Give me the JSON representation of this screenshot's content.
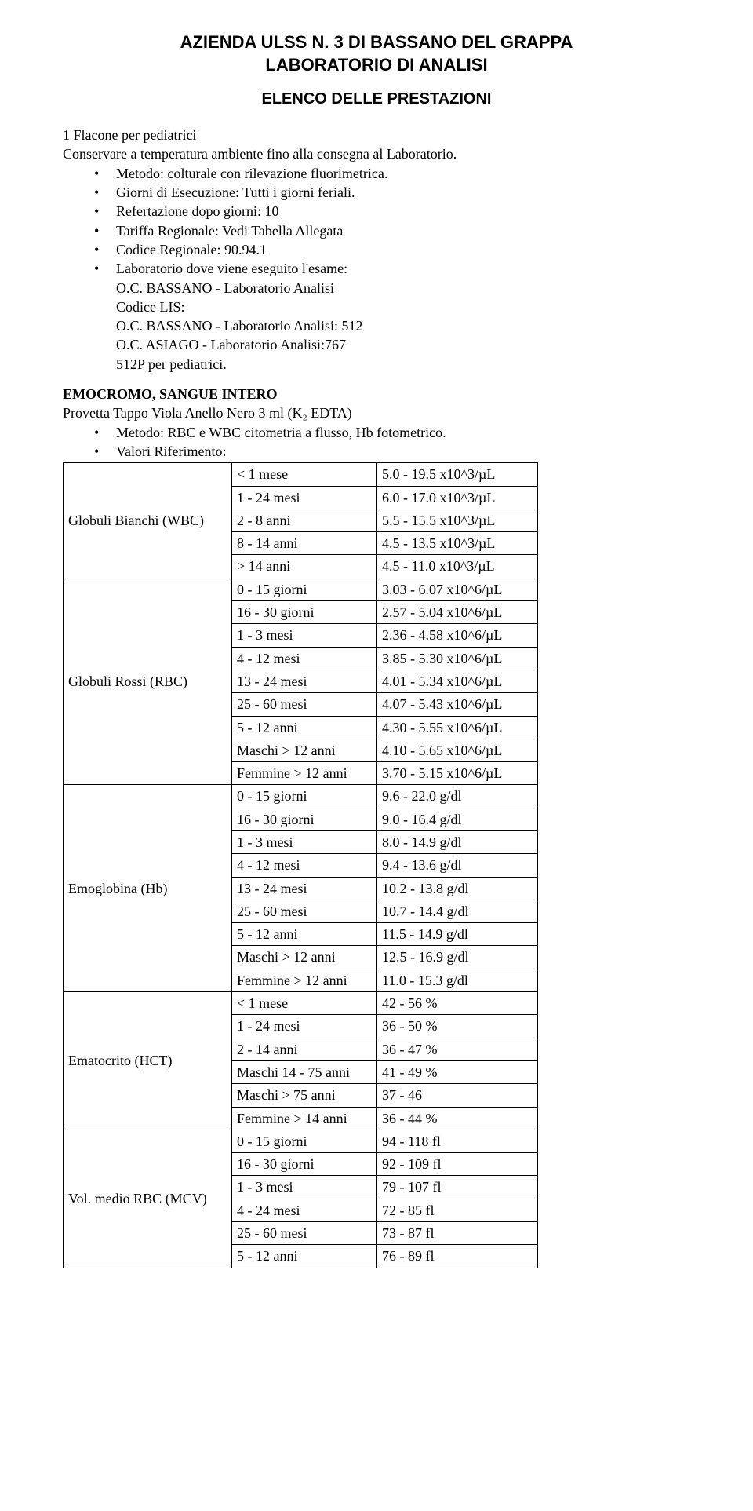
{
  "header": {
    "line1": "AZIENDA ULSS N. 3 DI BASSANO DEL GRAPPA",
    "line2": "LABORATORIO DI ANALISI",
    "subtitle": "ELENCO DELLE PRESTAZIONI"
  },
  "intro": {
    "line1": "1 Flacone per pediatrici",
    "line2": "Conservare a temperatura ambiente fino alla consegna al Laboratorio."
  },
  "bullets1": [
    "Metodo: colturale con rilevazione fluorimetrica.",
    "Giorni di Esecuzione: Tutti i giorni feriali.",
    "Refertazione dopo giorni: 10",
    "Tariffa Regionale: Vedi Tabella Allegata",
    "Codice Regionale: 90.94.1",
    "Laboratorio dove viene eseguito l'esame:",
    "O.C. BASSANO - Laboratorio Analisi",
    "Codice LIS:",
    "O.C. BASSANO - Laboratorio Analisi: 512",
    "O.C. ASIAGO - Laboratorio Analisi:767",
    "512P  per pediatrici."
  ],
  "section2": {
    "title": "EMOCROMO, SANGUE INTERO",
    "subtitle": "Provetta Tappo Viola Anello Nero 3 ml (K₂ EDTA)"
  },
  "bullets2": [
    "Metodo: RBC e WBC citometria a flusso, Hb fotometrico.",
    "Valori Riferimento:"
  ],
  "table": {
    "groups": [
      {
        "label": "Globuli Bianchi  (WBC)",
        "rows": [
          [
            "< 1 mese",
            "5.0 - 19.5  x10^3/µL"
          ],
          [
            "1 - 24 mesi",
            "6.0 - 17.0 x10^3/µL"
          ],
          [
            "2 - 8 anni",
            "5.5 - 15.5 x10^3/µL"
          ],
          [
            "8 - 14 anni",
            "4.5 - 13.5 x10^3/µL"
          ],
          [
            "> 14 anni",
            "4.5 - 11.0 x10^3/µL"
          ]
        ]
      },
      {
        "label": "Globuli Rossi (RBC)",
        "rows": [
          [
            "0 - 15 giorni",
            "3.03 - 6.07 x10^6/µL"
          ],
          [
            "16 - 30 giorni",
            "2.57 - 5.04 x10^6/µL"
          ],
          [
            "1 - 3 mesi",
            "2.36 - 4.58 x10^6/µL"
          ],
          [
            "4 - 12 mesi",
            "3.85 - 5.30 x10^6/µL"
          ],
          [
            "13 - 24 mesi",
            "4.01 - 5.34 x10^6/µL"
          ],
          [
            "25 - 60 mesi",
            "4.07 - 5.43 x10^6/µL"
          ],
          [
            "5 - 12 anni",
            "4.30 - 5.55 x10^6/µL"
          ],
          [
            "Maschi > 12 anni",
            "4.10 - 5.65 x10^6/µL"
          ],
          [
            "Femmine > 12 anni",
            "3.70 - 5.15 x10^6/µL"
          ]
        ]
      },
      {
        "label": "Emoglobina (Hb)",
        "rows": [
          [
            "0 - 15 giorni",
            "9.6 - 22.0 g/dl"
          ],
          [
            "16 - 30 giorni",
            "9.0 - 16.4 g/dl"
          ],
          [
            "1 - 3 mesi",
            "8.0 - 14.9 g/dl"
          ],
          [
            "4 - 12 mesi",
            "9.4 - 13.6 g/dl"
          ],
          [
            "13 - 24 mesi",
            "10.2 - 13.8 g/dl"
          ],
          [
            "25 - 60 mesi",
            "10.7 - 14.4 g/dl"
          ],
          [
            "5 - 12 anni",
            "11.5 - 14.9 g/dl"
          ],
          [
            "Maschi > 12 anni",
            "12.5 - 16.9 g/dl"
          ],
          [
            "Femmine > 12 anni",
            "11.0 - 15.3 g/dl"
          ]
        ]
      },
      {
        "label": "Ematocrito (HCT)",
        "rows": [
          [
            "< 1 mese",
            "42 - 56 %"
          ],
          [
            "1 - 24 mesi",
            "36 - 50 %"
          ],
          [
            "2 - 14 anni",
            "36 - 47 %"
          ],
          [
            "Maschi 14 - 75 anni",
            "41 - 49 %"
          ],
          [
            "Maschi > 75 anni",
            "37 - 46"
          ],
          [
            "Femmine > 14 anni",
            "36 - 44 %"
          ]
        ]
      },
      {
        "label": "Vol. medio RBC (MCV)",
        "rows": [
          [
            "0 - 15 giorni",
            "94 - 118 fl"
          ],
          [
            "16 - 30 giorni",
            "92 - 109 fl"
          ],
          [
            "1 - 3 mesi",
            "79 - 107 fl"
          ],
          [
            "4 - 24 mesi",
            "72 - 85 fl"
          ],
          [
            "25 - 60 mesi",
            "73 - 87 fl"
          ],
          [
            "5 - 12 anni",
            "76 - 89 fl"
          ]
        ]
      }
    ]
  }
}
